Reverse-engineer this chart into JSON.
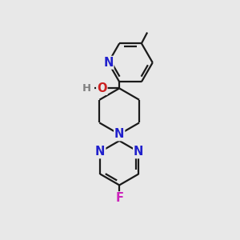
{
  "background_color": "#e8e8e8",
  "bond_color": "#1a1a1a",
  "bond_width": 1.6,
  "atom_colors": {
    "N": "#2020cc",
    "O": "#cc2020",
    "F": "#cc22bb",
    "H": "#808080",
    "C": "#1a1a1a"
  },
  "font_size": 10.5,
  "fig_width": 3.0,
  "fig_height": 3.0,
  "xlim": [
    0.18,
    0.82
  ],
  "ylim": [
    0.04,
    0.96
  ]
}
